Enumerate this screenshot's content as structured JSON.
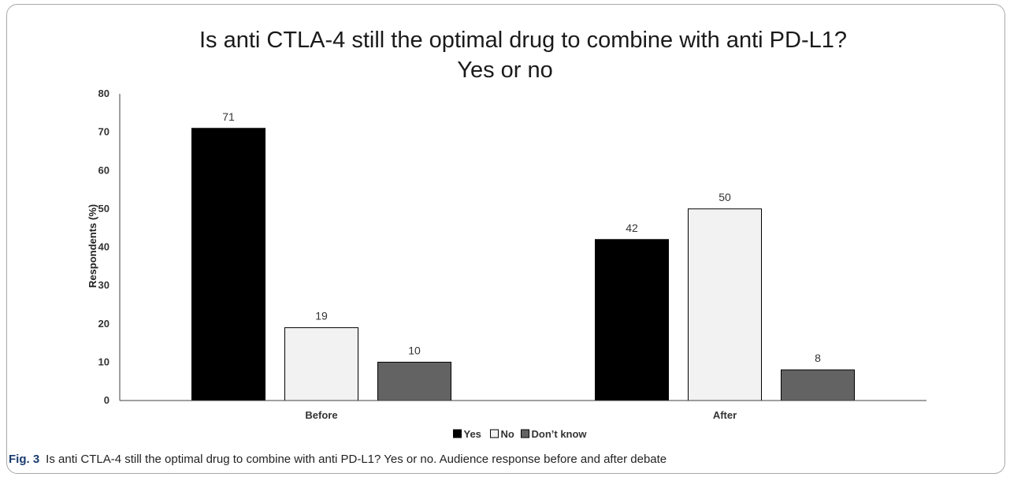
{
  "chart_data": {
    "type": "bar",
    "title_line1": "Is anti CTLA-4 still the optimal drug to combine with anti PD-L1?",
    "title_line2": "Yes or no",
    "ylabel": "Respondents (%)",
    "xlabel": "",
    "ylim": [
      0,
      80
    ],
    "yticks": [
      0,
      10,
      20,
      30,
      40,
      50,
      60,
      70,
      80
    ],
    "categories": [
      "Before",
      "After"
    ],
    "series": [
      {
        "name": "Yes",
        "values": [
          71,
          42
        ],
        "color": "#000000"
      },
      {
        "name": "No",
        "values": [
          19,
          50
        ],
        "color": "#f2f2f2"
      },
      {
        "name": "Don’t know",
        "values": [
          10,
          8
        ],
        "color": "#636363"
      }
    ],
    "legend_position": "bottom",
    "grid": false
  },
  "caption": {
    "label": "Fig. 3",
    "text": "Is anti CTLA-4 still the optimal drug to combine with anti PD-L1? Yes or no. Audience response before and after debate"
  }
}
